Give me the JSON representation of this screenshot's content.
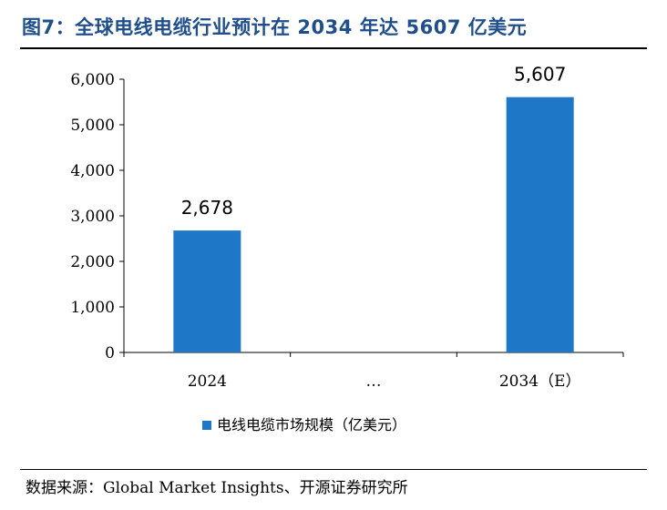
{
  "figure": {
    "title": "图7：全球电线电缆行业预计在 2034 年达 5607 亿美元",
    "source": "数据来源：Global Market Insights、开源证券研究所"
  },
  "chart_data": {
    "type": "bar",
    "categories": [
      "2024",
      "…",
      "2034（E）"
    ],
    "series": [
      {
        "name": "电线电缆市场规模（亿美元）",
        "values": [
          2678,
          null,
          5607
        ],
        "color": "#1f77c8"
      }
    ],
    "data_labels": [
      "2,678",
      "",
      "5,607"
    ],
    "yticks": [
      "0",
      "1,000",
      "2,000",
      "3,000",
      "4,000",
      "5,000",
      "6,000"
    ],
    "ylim": [
      0,
      6000
    ],
    "title": "",
    "xlabel": "",
    "ylabel": "",
    "grid": false,
    "legend": "bottom"
  }
}
